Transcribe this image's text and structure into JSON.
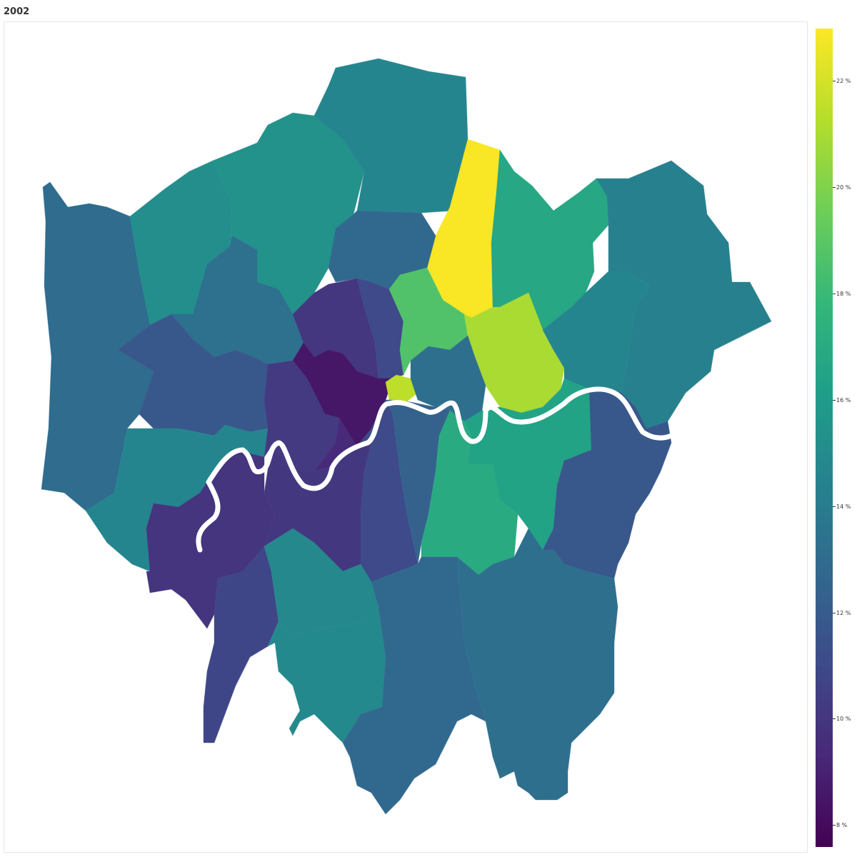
{
  "title": "2002",
  "colorbar": {
    "min": 7.6,
    "max": 23.0,
    "ticks": [
      {
        "value": 8,
        "label": "8 %"
      },
      {
        "value": 10,
        "label": "10 %"
      },
      {
        "value": 12,
        "label": "12 %"
      },
      {
        "value": 14,
        "label": "14 %"
      },
      {
        "value": 16,
        "label": "16 %"
      },
      {
        "value": 18,
        "label": "18 %"
      },
      {
        "value": 20,
        "label": "20 %"
      },
      {
        "value": 22,
        "label": "22 %"
      }
    ]
  },
  "colors": {
    "palette": [
      "#440154",
      "#482878",
      "#3e4a89",
      "#31688e",
      "#26828e",
      "#1f9e89",
      "#35b779",
      "#6ece58",
      "#b5de2b",
      "#fde725"
    ],
    "river": "#ffffff"
  },
  "chart_data": {
    "type": "heatmap",
    "scale": "viridis",
    "value_unit": "%",
    "boroughs": [
      {
        "id": "hillingdon",
        "value": 13.0
      },
      {
        "id": "harrow",
        "value": 15.2
      },
      {
        "id": "barnet",
        "value": 15.4
      },
      {
        "id": "enfield",
        "value": 14.6
      },
      {
        "id": "waltham-forest",
        "value": 22.9
      },
      {
        "id": "redbridge",
        "value": 16.8
      },
      {
        "id": "havering",
        "value": 14.3
      },
      {
        "id": "brent",
        "value": 13.3
      },
      {
        "id": "haringey",
        "value": 12.8
      },
      {
        "id": "camden",
        "value": 10.0
      },
      {
        "id": "islington",
        "value": 11.0
      },
      {
        "id": "hackney",
        "value": 18.7
      },
      {
        "id": "newham",
        "value": 21.0
      },
      {
        "id": "barking-dagenham",
        "value": 14.6
      },
      {
        "id": "ealing",
        "value": 11.8
      },
      {
        "id": "westminster",
        "value": 8.5
      },
      {
        "id": "city",
        "value": 21.5
      },
      {
        "id": "tower-hamlets",
        "value": 13.2
      },
      {
        "id": "hounslow",
        "value": 14.6
      },
      {
        "id": "hammersmith-fulham",
        "value": 10.2
      },
      {
        "id": "kensington-chelsea",
        "value": 9.4
      },
      {
        "id": "wandsworth",
        "value": 10.1
      },
      {
        "id": "lambeth",
        "value": 11.0
      },
      {
        "id": "southwark",
        "value": 12.4
      },
      {
        "id": "lewisham",
        "value": 17.0
      },
      {
        "id": "greenwich",
        "value": 16.5
      },
      {
        "id": "bexley",
        "value": 11.8
      },
      {
        "id": "richmond",
        "value": 9.9
      },
      {
        "id": "kingston",
        "value": 10.8
      },
      {
        "id": "merton",
        "value": 14.8
      },
      {
        "id": "sutton",
        "value": 14.9
      },
      {
        "id": "croydon",
        "value": 12.8
      },
      {
        "id": "bromley",
        "value": 13.2
      }
    ]
  }
}
